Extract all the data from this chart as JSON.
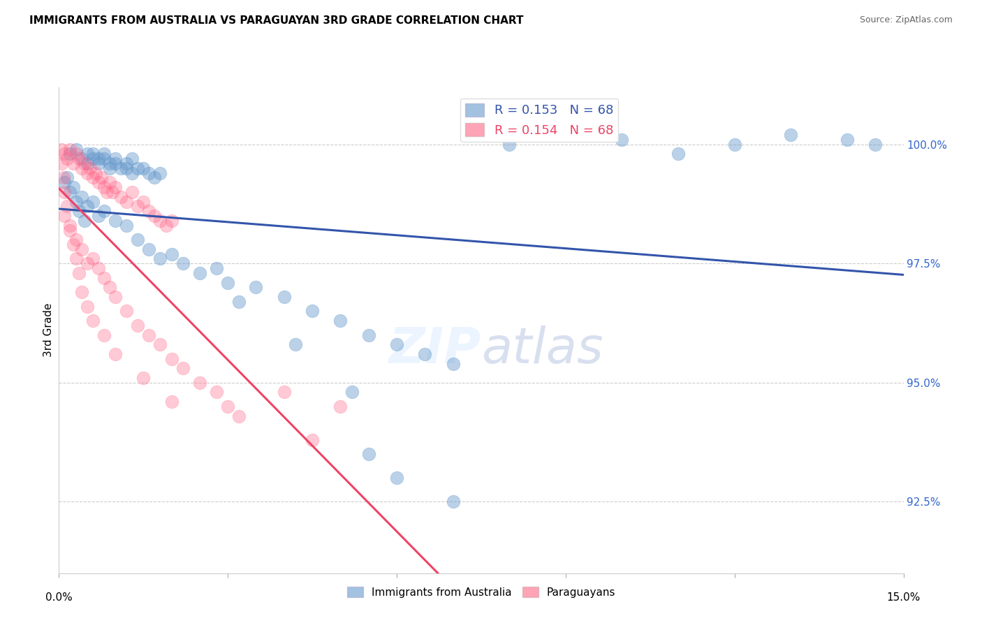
{
  "title": "IMMIGRANTS FROM AUSTRALIA VS PARAGUAYAN 3RD GRADE CORRELATION CHART",
  "source": "Source: ZipAtlas.com",
  "ylabel": "3rd Grade",
  "yticks": [
    92.5,
    95.0,
    97.5,
    100.0
  ],
  "ytick_labels": [
    "92.5%",
    "95.0%",
    "97.5%",
    "100.0%"
  ],
  "xmin": 0.0,
  "xmax": 15.0,
  "ymin": 91.0,
  "ymax": 101.2,
  "legend_blue_r": "R = 0.153",
  "legend_blue_n": "N = 68",
  "legend_pink_r": "R = 0.154",
  "legend_pink_n": "N = 68",
  "blue_color": "#6699CC",
  "pink_color": "#FF6688",
  "blue_line_color": "#3355AA",
  "pink_line_color": "#EE4466",
  "blue_scatter": [
    [
      0.2,
      99.8
    ],
    [
      0.3,
      99.9
    ],
    [
      0.4,
      99.7
    ],
    [
      0.5,
      99.8
    ],
    [
      0.5,
      99.6
    ],
    [
      0.6,
      99.8
    ],
    [
      0.6,
      99.7
    ],
    [
      0.7,
      99.7
    ],
    [
      0.7,
      99.6
    ],
    [
      0.8,
      99.8
    ],
    [
      0.8,
      99.7
    ],
    [
      0.9,
      99.6
    ],
    [
      0.9,
      99.5
    ],
    [
      1.0,
      99.7
    ],
    [
      1.0,
      99.6
    ],
    [
      1.1,
      99.5
    ],
    [
      1.2,
      99.6
    ],
    [
      1.2,
      99.5
    ],
    [
      1.3,
      99.7
    ],
    [
      1.3,
      99.4
    ],
    [
      1.4,
      99.5
    ],
    [
      1.5,
      99.5
    ],
    [
      1.6,
      99.4
    ],
    [
      1.7,
      99.3
    ],
    [
      1.8,
      99.4
    ],
    [
      0.1,
      99.2
    ],
    [
      0.2,
      99.0
    ],
    [
      0.3,
      98.8
    ],
    [
      0.4,
      98.9
    ],
    [
      0.5,
      98.7
    ],
    [
      0.6,
      98.8
    ],
    [
      0.7,
      98.5
    ],
    [
      0.8,
      98.6
    ],
    [
      1.0,
      98.4
    ],
    [
      1.2,
      98.3
    ],
    [
      1.4,
      98.0
    ],
    [
      1.6,
      97.8
    ],
    [
      1.8,
      97.6
    ],
    [
      2.0,
      97.7
    ],
    [
      2.2,
      97.5
    ],
    [
      2.5,
      97.3
    ],
    [
      3.0,
      97.1
    ],
    [
      3.5,
      97.0
    ],
    [
      4.0,
      96.8
    ],
    [
      4.5,
      96.5
    ],
    [
      5.0,
      96.3
    ],
    [
      5.5,
      96.0
    ],
    [
      6.0,
      95.8
    ],
    [
      6.5,
      95.6
    ],
    [
      7.0,
      95.4
    ],
    [
      0.15,
      99.3
    ],
    [
      0.25,
      99.1
    ],
    [
      0.35,
      98.6
    ],
    [
      0.45,
      98.4
    ],
    [
      2.8,
      97.4
    ],
    [
      3.2,
      96.7
    ],
    [
      4.2,
      95.8
    ],
    [
      5.2,
      94.8
    ],
    [
      5.5,
      93.5
    ],
    [
      6.0,
      93.0
    ],
    [
      7.0,
      92.5
    ],
    [
      8.0,
      100.0
    ],
    [
      10.0,
      100.1
    ],
    [
      11.0,
      99.8
    ],
    [
      12.0,
      100.0
    ],
    [
      13.0,
      100.2
    ],
    [
      14.0,
      100.1
    ],
    [
      14.5,
      100.0
    ]
  ],
  "pink_scatter": [
    [
      0.05,
      99.9
    ],
    [
      0.1,
      99.8
    ],
    [
      0.15,
      99.7
    ],
    [
      0.2,
      99.9
    ],
    [
      0.25,
      99.6
    ],
    [
      0.3,
      99.8
    ],
    [
      0.35,
      99.7
    ],
    [
      0.4,
      99.5
    ],
    [
      0.45,
      99.6
    ],
    [
      0.5,
      99.4
    ],
    [
      0.55,
      99.5
    ],
    [
      0.6,
      99.3
    ],
    [
      0.65,
      99.4
    ],
    [
      0.7,
      99.2
    ],
    [
      0.75,
      99.3
    ],
    [
      0.8,
      99.1
    ],
    [
      0.85,
      99.0
    ],
    [
      0.9,
      99.2
    ],
    [
      0.95,
      99.0
    ],
    [
      1.0,
      99.1
    ],
    [
      1.1,
      98.9
    ],
    [
      1.2,
      98.8
    ],
    [
      1.3,
      99.0
    ],
    [
      1.4,
      98.7
    ],
    [
      1.5,
      98.8
    ],
    [
      1.6,
      98.6
    ],
    [
      1.7,
      98.5
    ],
    [
      1.8,
      98.4
    ],
    [
      1.9,
      98.3
    ],
    [
      2.0,
      98.4
    ],
    [
      0.1,
      98.5
    ],
    [
      0.2,
      98.3
    ],
    [
      0.3,
      98.0
    ],
    [
      0.4,
      97.8
    ],
    [
      0.5,
      97.5
    ],
    [
      0.6,
      97.6
    ],
    [
      0.7,
      97.4
    ],
    [
      0.8,
      97.2
    ],
    [
      0.9,
      97.0
    ],
    [
      1.0,
      96.8
    ],
    [
      1.2,
      96.5
    ],
    [
      1.4,
      96.2
    ],
    [
      1.6,
      96.0
    ],
    [
      1.8,
      95.8
    ],
    [
      2.0,
      95.5
    ],
    [
      2.2,
      95.3
    ],
    [
      2.5,
      95.0
    ],
    [
      2.8,
      94.8
    ],
    [
      3.0,
      94.5
    ],
    [
      3.2,
      94.3
    ],
    [
      0.05,
      99.6
    ],
    [
      0.08,
      99.3
    ],
    [
      0.1,
      99.0
    ],
    [
      0.15,
      98.7
    ],
    [
      0.2,
      98.2
    ],
    [
      0.25,
      97.9
    ],
    [
      0.3,
      97.6
    ],
    [
      0.35,
      97.3
    ],
    [
      0.4,
      96.9
    ],
    [
      0.5,
      96.6
    ],
    [
      0.6,
      96.3
    ],
    [
      0.8,
      96.0
    ],
    [
      1.0,
      95.6
    ],
    [
      1.5,
      95.1
    ],
    [
      2.0,
      94.6
    ],
    [
      4.0,
      94.8
    ],
    [
      5.0,
      94.5
    ],
    [
      4.5,
      93.8
    ]
  ]
}
